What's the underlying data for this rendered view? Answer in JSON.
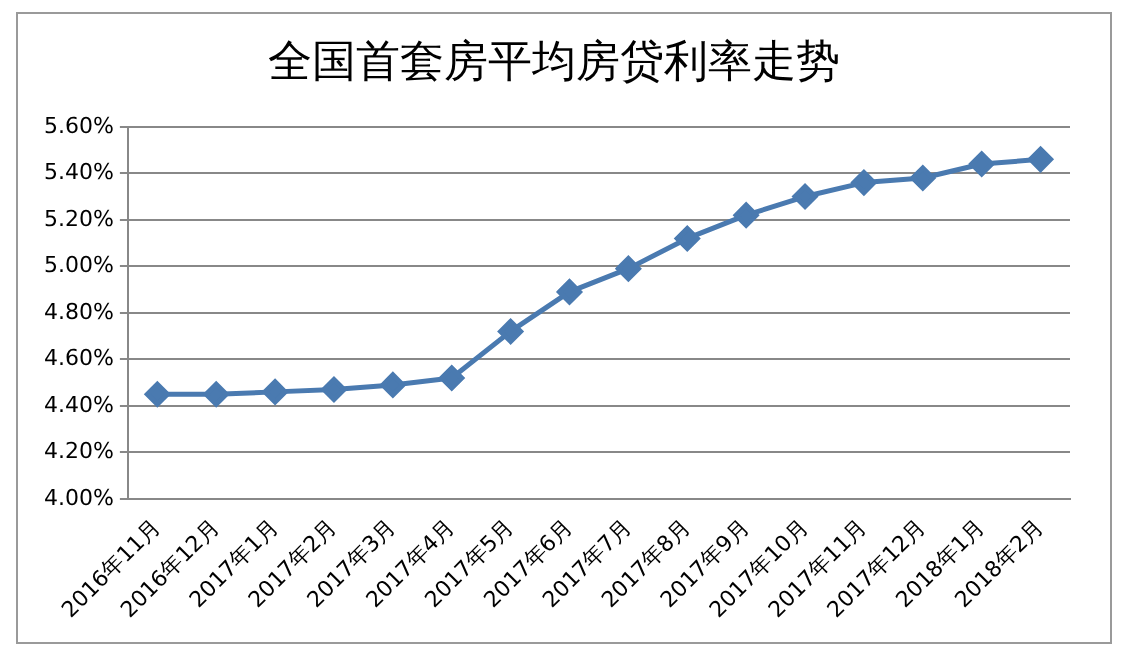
{
  "chart_data": {
    "type": "line",
    "title": "全国首套房平均房贷利率走势",
    "categories": [
      "2016年11月",
      "2016年12月",
      "2017年1月",
      "2017年2月",
      "2017年3月",
      "2017年4月",
      "2017年5月",
      "2017年6月",
      "2017年7月",
      "2017年8月",
      "2017年9月",
      "2017年10月",
      "2017年11月",
      "2017年12月",
      "2018年1月",
      "2018年2月"
    ],
    "series": [
      {
        "color": "#4a7ab0",
        "values": [
          4.45,
          4.45,
          4.46,
          4.47,
          4.49,
          4.52,
          4.72,
          4.89,
          4.99,
          5.12,
          5.22,
          5.3,
          5.36,
          5.38,
          5.44,
          5.46
        ]
      }
    ],
    "ylim": [
      4,
      5.6
    ],
    "yticks": [
      {
        "value": 4,
        "label": "4.00%"
      },
      {
        "value": 4.2,
        "label": "4.20%"
      },
      {
        "value": 4.4,
        "label": "4.40%"
      },
      {
        "value": 4.6,
        "label": "4.60%"
      },
      {
        "value": 4.8,
        "label": "4.80%"
      },
      {
        "value": 5,
        "label": "5.00%"
      },
      {
        "value": 5.2,
        "label": "5.20%"
      },
      {
        "value": 5.4,
        "label": "5.40%"
      },
      {
        "value": 5.6,
        "label": "5.60%"
      }
    ],
    "grid": "y",
    "legend": false,
    "marker": "diamond",
    "line_style": "solid"
  }
}
